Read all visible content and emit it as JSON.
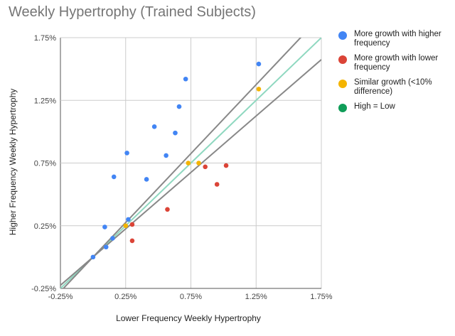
{
  "chart_data": {
    "type": "scatter",
    "title": "Weekly Hypertrophy (Trained Subjects)",
    "xlabel": "Lower Frequency Weekly Hypertrophy",
    "ylabel": "Higher Frequency Weekly Hypertrophy",
    "xlim": [
      -0.25,
      1.75
    ],
    "ylim": [
      -0.25,
      1.75
    ],
    "x_ticks": [
      "-0.25%",
      "0.25%",
      "0.75%",
      "1.25%",
      "1.75%"
    ],
    "y_ticks": [
      "1.75%",
      "1.25%",
      "0.75%",
      "0.25%",
      "-0.25%"
    ],
    "x_tick_values": [
      -0.25,
      0.25,
      0.75,
      1.25,
      1.75
    ],
    "y_tick_values": [
      1.75,
      1.25,
      0.75,
      0.25,
      -0.25
    ],
    "grid": true,
    "legend_position": "right",
    "series": [
      {
        "name": "More growth with higher frequency",
        "color": "#4285f4",
        "points": [
          [
            0.0,
            0.0
          ],
          [
            0.09,
            0.24
          ],
          [
            0.1,
            0.08
          ],
          [
            0.15,
            0.15
          ],
          [
            0.16,
            0.64
          ],
          [
            0.26,
            0.83
          ],
          [
            0.27,
            0.3
          ],
          [
            0.41,
            0.62
          ],
          [
            0.47,
            1.04
          ],
          [
            0.56,
            0.81
          ],
          [
            0.63,
            0.99
          ],
          [
            0.66,
            1.2
          ],
          [
            0.71,
            1.42
          ],
          [
            1.27,
            1.54
          ]
        ]
      },
      {
        "name": "More growth with lower frequency",
        "color": "#db4437",
        "points": [
          [
            0.3,
            0.26
          ],
          [
            0.3,
            0.13
          ],
          [
            0.57,
            0.38
          ],
          [
            0.86,
            0.72
          ],
          [
            0.95,
            0.58
          ],
          [
            1.02,
            0.73
          ]
        ]
      },
      {
        "name": "Similar growth (<10% difference)",
        "color": "#f4b400",
        "points": [
          [
            0.25,
            0.25
          ],
          [
            0.73,
            0.75
          ],
          [
            0.81,
            0.75
          ],
          [
            1.27,
            1.34
          ]
        ]
      },
      {
        "name": "High = Low",
        "color": "#0f9d58",
        "points": []
      }
    ],
    "reference_lines": [
      {
        "label": "y = x",
        "slope": 1.0,
        "color": "#8fd8c0"
      },
      {
        "label": "upper",
        "slope": 1.1,
        "color": "#888888"
      },
      {
        "label": "lower",
        "slope": 0.9,
        "color": "#888888"
      }
    ]
  }
}
